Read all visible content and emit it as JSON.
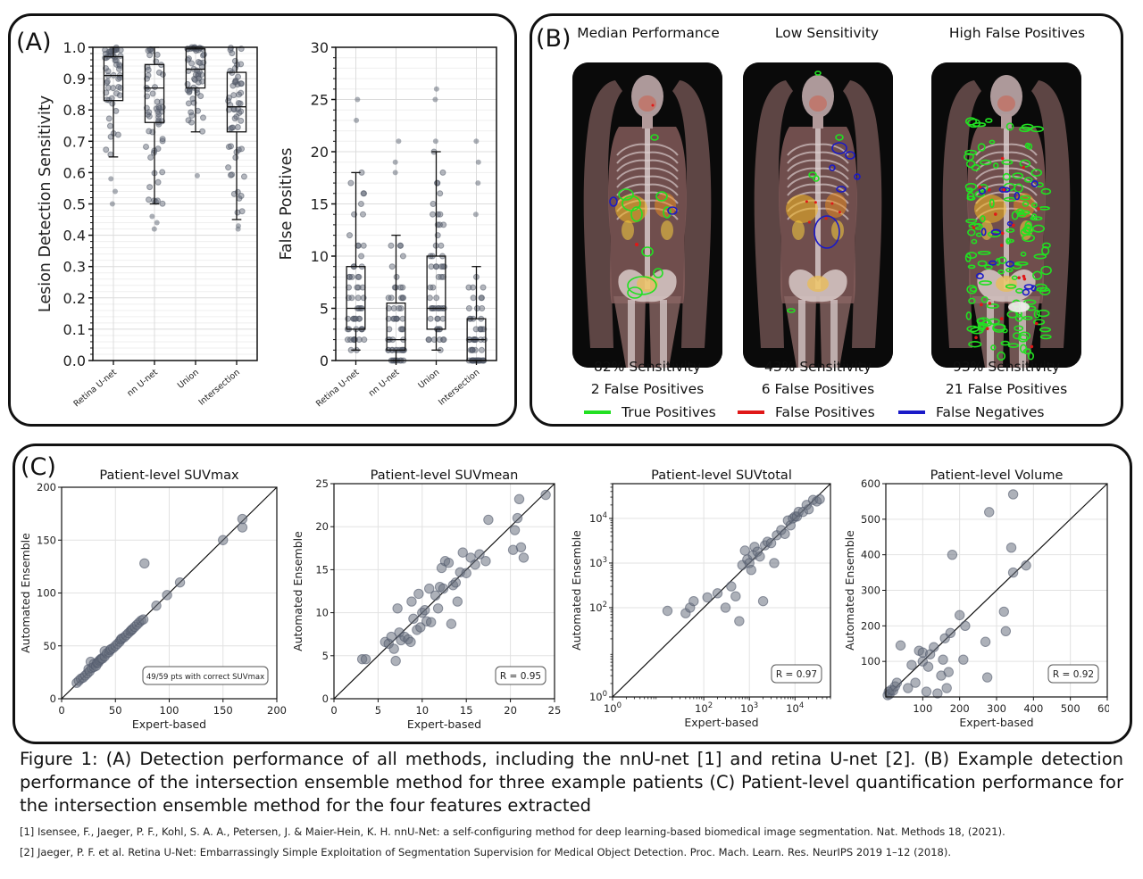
{
  "panels": {
    "a_label": "(A)",
    "b_label": "(B)",
    "c_label": "(C)"
  },
  "panel_b": {
    "scans": [
      {
        "title": "Median Performance",
        "sensitivity": "82% Sensitivity",
        "false_positives": "2 False Positives"
      },
      {
        "title": "Low Sensitivity",
        "sensitivity": "43% Sensitivity",
        "false_positives": "6 False Positives"
      },
      {
        "title": "High False Positives",
        "sensitivity": "93% Sensitivity",
        "false_positives": "21 False Positives"
      }
    ],
    "legend": [
      {
        "label": "True Positives",
        "color": "#22e022"
      },
      {
        "label": "False Positives",
        "color": "#e01818"
      },
      {
        "label": "False Negatives",
        "color": "#1a1ac8"
      }
    ]
  },
  "chart_data": [
    {
      "type": "box",
      "ylabel": "Lesion Detection Sensitivity",
      "categories": [
        "Retina U-net",
        "nn U-net",
        "Union",
        "Intersection"
      ],
      "yticks": [
        "0.0",
        "0.1",
        "0.2",
        "0.3",
        "0.4",
        "0.5",
        "0.6",
        "0.7",
        "0.8",
        "0.9",
        "1.0"
      ],
      "ylim": [
        0,
        1.0
      ],
      "boxes": [
        {
          "whisker_low": 0.65,
          "q1": 0.83,
          "median": 0.91,
          "q3": 0.97,
          "whisker_high": 1.0,
          "outliers": [
            0.58,
            0.54,
            0.5
          ]
        },
        {
          "whisker_low": 0.5,
          "q1": 0.76,
          "median": 0.87,
          "q3": 0.945,
          "whisker_high": 1.0,
          "outliers": [
            0.46,
            0.44,
            0.42
          ]
        },
        {
          "whisker_low": 0.73,
          "q1": 0.87,
          "median": 0.93,
          "q3": 0.995,
          "whisker_high": 1.0,
          "outliers": [
            0.59
          ]
        },
        {
          "whisker_low": 0.45,
          "q1": 0.73,
          "median": 0.81,
          "q3": 0.92,
          "whisker_high": 1.0,
          "outliers": [
            0.43,
            0.42
          ]
        }
      ],
      "grid": true
    },
    {
      "type": "box",
      "ylabel": "False Positives",
      "categories": [
        "Retina U-net",
        "nn U-net",
        "Union",
        "Intersection"
      ],
      "yticks": [
        "0",
        "5",
        "10",
        "15",
        "20",
        "25",
        "30"
      ],
      "ylim": [
        0,
        30
      ],
      "boxes": [
        {
          "whisker_low": 1,
          "q1": 3,
          "median": 5,
          "q3": 9,
          "whisker_high": 18,
          "outliers": [
            23,
            25
          ]
        },
        {
          "whisker_low": 0,
          "q1": 1,
          "median": 2,
          "q3": 5.5,
          "whisker_high": 12,
          "outliers": [
            18,
            19,
            21
          ]
        },
        {
          "whisker_low": 1,
          "q1": 3,
          "median": 5,
          "q3": 10,
          "whisker_high": 20,
          "outliers": [
            21,
            25,
            26
          ]
        },
        {
          "whisker_low": 0,
          "q1": 0,
          "median": 2,
          "q3": 4,
          "whisker_high": 9,
          "outliers": [
            14,
            17,
            19,
            21
          ]
        }
      ],
      "grid": true
    },
    {
      "type": "scatter",
      "title": "Patient-level SUVmax",
      "xlabel": "Expert-based",
      "ylabel": "Automated Ensemble",
      "xlim": [
        0,
        200
      ],
      "ylim": [
        0,
        200
      ],
      "xticks": [
        "0",
        "50",
        "100",
        "150",
        "200"
      ],
      "yticks": [
        "0",
        "50",
        "100",
        "150",
        "200"
      ],
      "annotation": "49/59 pts with correct SUVmax",
      "identity_line": true,
      "points": [
        [
          14,
          15
        ],
        [
          16,
          17
        ],
        [
          18,
          19
        ],
        [
          20,
          20
        ],
        [
          22,
          22
        ],
        [
          24,
          24
        ],
        [
          25,
          28
        ],
        [
          26,
          26
        ],
        [
          27,
          35
        ],
        [
          28,
          29
        ],
        [
          30,
          30
        ],
        [
          30,
          33
        ],
        [
          32,
          31
        ],
        [
          33,
          34
        ],
        [
          34,
          34
        ],
        [
          35,
          36
        ],
        [
          36,
          37
        ],
        [
          37,
          38
        ],
        [
          38,
          38
        ],
        [
          40,
          40
        ],
        [
          40,
          45
        ],
        [
          42,
          43
        ],
        [
          44,
          44
        ],
        [
          45,
          46
        ],
        [
          46,
          47
        ],
        [
          48,
          48
        ],
        [
          50,
          50
        ],
        [
          52,
          52
        ],
        [
          54,
          54
        ],
        [
          55,
          56
        ],
        [
          56,
          57
        ],
        [
          58,
          58
        ],
        [
          60,
          60
        ],
        [
          62,
          62
        ],
        [
          64,
          64
        ],
        [
          65,
          65
        ],
        [
          66,
          66
        ],
        [
          68,
          68
        ],
        [
          70,
          70
        ],
        [
          72,
          72
        ],
        [
          74,
          74
        ],
        [
          76,
          75
        ],
        [
          77,
          128
        ],
        [
          88,
          88
        ],
        [
          98,
          98
        ],
        [
          110,
          110
        ],
        [
          150,
          150
        ],
        [
          168,
          162
        ],
        [
          168,
          170
        ]
      ],
      "grid": true
    },
    {
      "type": "scatter",
      "title": "Patient-level SUVmean",
      "xlabel": "Expert-based",
      "ylabel": "Automated Ensemble",
      "xlim": [
        0,
        25
      ],
      "ylim": [
        0,
        25
      ],
      "xticks": [
        "0",
        "5",
        "10",
        "15",
        "20",
        "25"
      ],
      "yticks": [
        "0",
        "5",
        "10",
        "15",
        "20",
        "25"
      ],
      "annotation": "R = 0.95",
      "identity_line": true,
      "points": [
        [
          3.2,
          4.6
        ],
        [
          3.6,
          4.6
        ],
        [
          5.8,
          6.6
        ],
        [
          6.2,
          6.4
        ],
        [
          6.5,
          7.2
        ],
        [
          6.8,
          5.8
        ],
        [
          7.0,
          4.4
        ],
        [
          7.2,
          10.5
        ],
        [
          7.4,
          7.7
        ],
        [
          7.6,
          6.8
        ],
        [
          8.0,
          7.2
        ],
        [
          8.4,
          6.9
        ],
        [
          8.7,
          6.6
        ],
        [
          8.8,
          11.3
        ],
        [
          9.0,
          9.3
        ],
        [
          9.4,
          8.0
        ],
        [
          9.6,
          12.2
        ],
        [
          9.8,
          8.3
        ],
        [
          10.0,
          10.0
        ],
        [
          10.3,
          10.3
        ],
        [
          10.5,
          9.0
        ],
        [
          10.8,
          12.8
        ],
        [
          11.0,
          8.9
        ],
        [
          11.5,
          12.0
        ],
        [
          11.8,
          10.5
        ],
        [
          12.0,
          13.0
        ],
        [
          12.2,
          15.2
        ],
        [
          12.4,
          12.8
        ],
        [
          12.6,
          16.0
        ],
        [
          13.0,
          15.8
        ],
        [
          13.3,
          8.7
        ],
        [
          13.5,
          13.2
        ],
        [
          13.8,
          13.5
        ],
        [
          14.0,
          11.3
        ],
        [
          14.3,
          14.7
        ],
        [
          14.6,
          17.0
        ],
        [
          15.0,
          14.6
        ],
        [
          15.5,
          16.4
        ],
        [
          16.0,
          15.6
        ],
        [
          16.5,
          16.8
        ],
        [
          17.2,
          16.0
        ],
        [
          17.5,
          20.8
        ],
        [
          20.3,
          17.3
        ],
        [
          20.5,
          19.6
        ],
        [
          20.8,
          21.0
        ],
        [
          21.0,
          23.2
        ],
        [
          21.2,
          17.6
        ],
        [
          21.5,
          16.4
        ],
        [
          24.0,
          23.7
        ]
      ],
      "grid": true
    },
    {
      "type": "scatter",
      "title": "Patient-level SUVtotal",
      "xlabel": "Expert-based",
      "ylabel": "Automated Ensemble",
      "xscale": "log",
      "yscale": "log",
      "xlim": [
        1,
        60000
      ],
      "ylim": [
        1,
        60000
      ],
      "xticks": [
        "10^0",
        "10^2",
        "10^3",
        "10^4"
      ],
      "yticks": [
        "10^0",
        "10^2",
        "10^3",
        "10^4"
      ],
      "annotation": "R = 0.97",
      "identity_line": true,
      "points": [
        [
          16,
          85
        ],
        [
          40,
          75
        ],
        [
          50,
          100
        ],
        [
          60,
          140
        ],
        [
          120,
          170
        ],
        [
          200,
          210
        ],
        [
          300,
          100
        ],
        [
          400,
          300
        ],
        [
          500,
          180
        ],
        [
          600,
          50
        ],
        [
          700,
          900
        ],
        [
          800,
          1900
        ],
        [
          900,
          1200
        ],
        [
          1000,
          1000
        ],
        [
          1100,
          700
        ],
        [
          1200,
          1500
        ],
        [
          1300,
          2300
        ],
        [
          1500,
          1800
        ],
        [
          1700,
          1400
        ],
        [
          2000,
          140
        ],
        [
          2200,
          2500
        ],
        [
          2500,
          3000
        ],
        [
          3000,
          2800
        ],
        [
          3500,
          1000
        ],
        [
          4000,
          4200
        ],
        [
          5000,
          5500
        ],
        [
          6000,
          4500
        ],
        [
          7000,
          9000
        ],
        [
          8000,
          7000
        ],
        [
          9000,
          10000
        ],
        [
          10000,
          11000
        ],
        [
          11000,
          11000
        ],
        [
          12000,
          14000
        ],
        [
          15000,
          14000
        ],
        [
          18000,
          20000
        ],
        [
          20000,
          16000
        ],
        [
          25000,
          26000
        ],
        [
          30000,
          24000
        ],
        [
          35000,
          27000
        ]
      ],
      "grid": true
    },
    {
      "type": "scatter",
      "title": "Patient-level Volume",
      "xlabel": "Expert-based",
      "ylabel": "Automated Ensemble",
      "xlim": [
        0,
        600
      ],
      "ylim": [
        0,
        600
      ],
      "xticks": [
        "100",
        "200",
        "300",
        "400",
        "500",
        "600"
      ],
      "yticks": [
        "100",
        "200",
        "300",
        "400",
        "500",
        "600"
      ],
      "annotation": "R = 0.92",
      "identity_line": true,
      "points": [
        [
          5,
          5
        ],
        [
          8,
          15
        ],
        [
          10,
          8
        ],
        [
          15,
          20
        ],
        [
          20,
          18
        ],
        [
          25,
          30
        ],
        [
          30,
          40
        ],
        [
          40,
          145
        ],
        [
          60,
          25
        ],
        [
          70,
          90
        ],
        [
          80,
          40
        ],
        [
          90,
          130
        ],
        [
          100,
          125
        ],
        [
          100,
          100
        ],
        [
          110,
          15
        ],
        [
          115,
          85
        ],
        [
          120,
          120
        ],
        [
          130,
          140
        ],
        [
          140,
          10
        ],
        [
          150,
          60
        ],
        [
          155,
          105
        ],
        [
          160,
          165
        ],
        [
          165,
          25
        ],
        [
          170,
          70
        ],
        [
          175,
          180
        ],
        [
          180,
          400
        ],
        [
          200,
          230
        ],
        [
          210,
          105
        ],
        [
          215,
          200
        ],
        [
          270,
          155
        ],
        [
          275,
          55
        ],
        [
          280,
          520
        ],
        [
          320,
          240
        ],
        [
          325,
          185
        ],
        [
          340,
          420
        ],
        [
          345,
          350
        ],
        [
          345,
          570
        ],
        [
          380,
          370
        ]
      ],
      "grid": true
    }
  ],
  "caption": {
    "text": "Figure 1: (A) Detection performance of all methods, including the nnU-net [1] and retina U-net [2]. (B) Example detection performance of the intersection ensemble method for three example patients (C) Patient-level quantification performance for the intersection ensemble method for the four features extracted"
  },
  "references": [
    "[1] Isensee, F., Jaeger, P. F., Kohl, S. A. A., Petersen, J. & Maier-Hein, K. H. nnU-Net: a self-configuring method for deep learning-based biomedical image segmentation. Nat. Methods 18, (2021).",
    "[2] Jaeger, P. F. et al. Retina U-Net: Embarrassingly Simple Exploitation of Segmentation Supervision for Medical Object Detection. Proc. Mach. Learn. Res. NeurIPS 2019 1–12 (2018)."
  ]
}
